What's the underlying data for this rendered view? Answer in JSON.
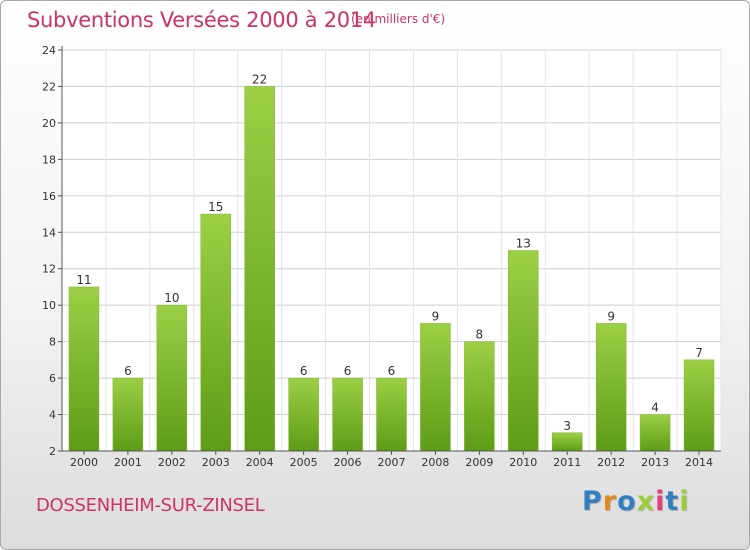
{
  "header": {
    "title": "Subventions Versées 2000 à 2014",
    "subtitle": "(en milliers d'€)"
  },
  "footer": {
    "commune": "DOSSENHEIM-SUR-ZINSEL",
    "logo": [
      "P",
      "r",
      "o",
      "x",
      "i",
      "t",
      "i"
    ],
    "logo_colors": [
      "#2f7fc1",
      "#e08a1e",
      "#2f7fc1",
      "#9ccc3c",
      "#e2407a",
      "#2f7fc1",
      "#9ccc3c"
    ]
  },
  "colors": {
    "bar_top": "#9ccf46",
    "bar_bottom": "#5e9c16",
    "grid": "#cfcfcf"
  },
  "chart_data": {
    "type": "bar",
    "title": "Subventions Versées 2000 à 2014",
    "subtitle": "(en milliers d'€)",
    "categories": [
      "2000",
      "2001",
      "2002",
      "2003",
      "2004",
      "2005",
      "2006",
      "2007",
      "2008",
      "2009",
      "2010",
      "2011",
      "2012",
      "2013",
      "2014"
    ],
    "values": [
      11,
      6,
      10,
      15,
      22,
      6,
      6,
      6,
      9,
      8,
      13,
      3,
      9,
      4,
      7
    ],
    "yticks": [
      2,
      4,
      6,
      8,
      10,
      12,
      14,
      16,
      18,
      20,
      22,
      24
    ],
    "ylim": [
      2,
      24
    ],
    "xlabel": "",
    "ylabel": "",
    "grid": true,
    "legend": "none"
  }
}
